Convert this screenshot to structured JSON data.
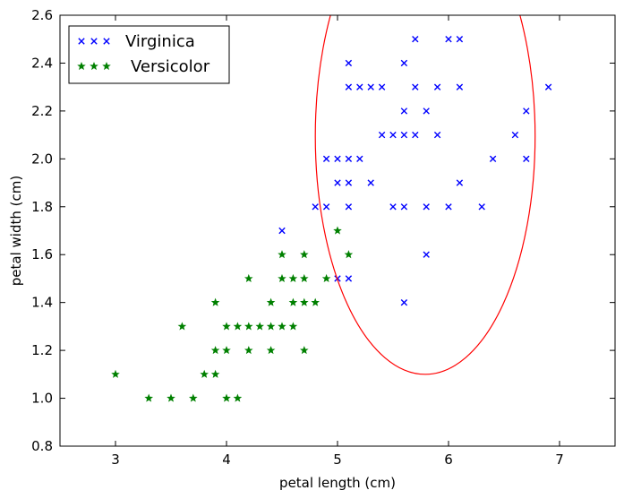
{
  "chart_data": {
    "type": "scatter",
    "xlabel": "petal length (cm)",
    "ylabel": "petal width (cm)",
    "xlim": [
      2.5,
      7.5
    ],
    "ylim": [
      0.8,
      2.6
    ],
    "x_ticks": [
      3,
      4,
      5,
      6,
      7
    ],
    "y_ticks": [
      0.8,
      1.0,
      1.2,
      1.4,
      1.6,
      1.8,
      2.0,
      2.2,
      2.4,
      2.6
    ],
    "x_tick_labels": [
      "3",
      "4",
      "5",
      "6",
      "7"
    ],
    "y_tick_labels": [
      "0.8",
      "1.0",
      "1.2",
      "1.4",
      "1.6",
      "1.8",
      "2.0",
      "2.2",
      "2.4",
      "2.6"
    ],
    "grid": false,
    "legend_position": "top-left",
    "series": [
      {
        "name": "Virginica",
        "marker": "x",
        "color": "#0000ff",
        "points": [
          [
            5.7,
            2.5
          ],
          [
            6.0,
            2.5
          ],
          [
            6.1,
            2.5
          ],
          [
            5.1,
            2.4
          ],
          [
            5.6,
            2.4
          ],
          [
            5.1,
            2.3
          ],
          [
            5.2,
            2.3
          ],
          [
            5.3,
            2.3
          ],
          [
            5.4,
            2.3
          ],
          [
            5.7,
            2.3
          ],
          [
            5.9,
            2.3
          ],
          [
            6.1,
            2.3
          ],
          [
            6.9,
            2.3
          ],
          [
            5.6,
            2.2
          ],
          [
            5.8,
            2.2
          ],
          [
            6.7,
            2.2
          ],
          [
            5.4,
            2.1
          ],
          [
            5.5,
            2.1
          ],
          [
            5.6,
            2.1
          ],
          [
            5.7,
            2.1
          ],
          [
            5.9,
            2.1
          ],
          [
            6.6,
            2.1
          ],
          [
            4.9,
            2.0
          ],
          [
            5.0,
            2.0
          ],
          [
            5.1,
            2.0
          ],
          [
            5.2,
            2.0
          ],
          [
            6.4,
            2.0
          ],
          [
            6.7,
            2.0
          ],
          [
            5.0,
            1.9
          ],
          [
            5.1,
            1.9
          ],
          [
            5.3,
            1.9
          ],
          [
            6.1,
            1.9
          ],
          [
            4.8,
            1.8
          ],
          [
            4.9,
            1.8
          ],
          [
            5.1,
            1.8
          ],
          [
            5.5,
            1.8
          ],
          [
            5.6,
            1.8
          ],
          [
            5.8,
            1.8
          ],
          [
            6.0,
            1.8
          ],
          [
            6.3,
            1.8
          ],
          [
            4.5,
            1.7
          ],
          [
            5.8,
            1.6
          ],
          [
            5.0,
            1.5
          ],
          [
            5.1,
            1.5
          ],
          [
            5.6,
            1.4
          ]
        ]
      },
      {
        "name": "Versicolor",
        "marker": "star",
        "color": "#008000",
        "points": [
          [
            5.0,
            1.7
          ],
          [
            4.5,
            1.6
          ],
          [
            4.7,
            1.6
          ],
          [
            5.1,
            1.6
          ],
          [
            4.2,
            1.5
          ],
          [
            4.5,
            1.5
          ],
          [
            4.6,
            1.5
          ],
          [
            4.7,
            1.5
          ],
          [
            4.9,
            1.5
          ],
          [
            3.9,
            1.4
          ],
          [
            4.4,
            1.4
          ],
          [
            4.6,
            1.4
          ],
          [
            4.7,
            1.4
          ],
          [
            4.8,
            1.4
          ],
          [
            3.6,
            1.3
          ],
          [
            4.0,
            1.3
          ],
          [
            4.1,
            1.3
          ],
          [
            4.2,
            1.3
          ],
          [
            4.3,
            1.3
          ],
          [
            4.4,
            1.3
          ],
          [
            4.5,
            1.3
          ],
          [
            4.6,
            1.3
          ],
          [
            3.9,
            1.2
          ],
          [
            4.0,
            1.2
          ],
          [
            4.2,
            1.2
          ],
          [
            4.4,
            1.2
          ],
          [
            4.7,
            1.2
          ],
          [
            3.0,
            1.1
          ],
          [
            3.8,
            1.1
          ],
          [
            3.9,
            1.1
          ],
          [
            3.3,
            1.0
          ],
          [
            3.5,
            1.0
          ],
          [
            3.7,
            1.0
          ],
          [
            4.0,
            1.0
          ],
          [
            4.1,
            1.0
          ]
        ]
      }
    ],
    "ellipse": {
      "color": "#ff0000",
      "center": [
        5.79,
        2.095
      ],
      "radius_x": 0.99,
      "radius_y": 0.995
    }
  }
}
